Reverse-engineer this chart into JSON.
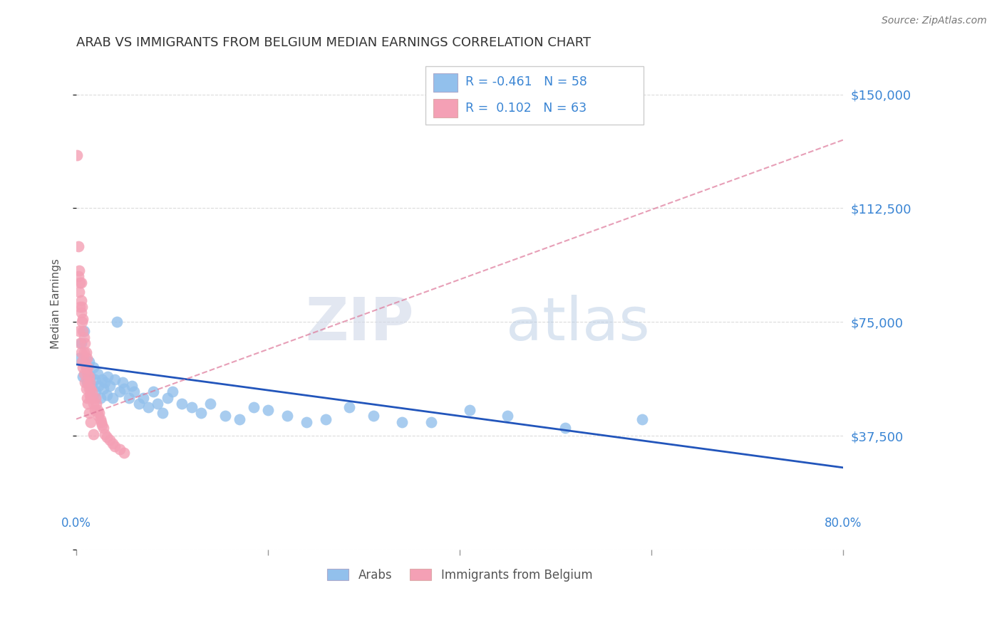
{
  "title": "ARAB VS IMMIGRANTS FROM BELGIUM MEDIAN EARNINGS CORRELATION CHART",
  "source": "Source: ZipAtlas.com",
  "ylabel": "Median Earnings",
  "yticks": [
    0,
    37500,
    75000,
    112500,
    150000
  ],
  "ytick_labels": [
    "",
    "$37,500",
    "$75,000",
    "$112,500",
    "$150,000"
  ],
  "ylim": [
    18000,
    162000
  ],
  "xlim": [
    0.0,
    0.8
  ],
  "legend_bottom": [
    "Arabs",
    "Immigrants from Belgium"
  ],
  "arab_color": "#92c0ec",
  "belgium_color": "#f4a0b5",
  "arab_line_color": "#2255bb",
  "belgium_line_color": "#dd7799",
  "watermark_zip": "ZIP",
  "watermark_atlas": "atlas",
  "background_color": "#ffffff",
  "grid_color": "#cccccc",
  "arab_trend_x0": 0.0,
  "arab_trend_y0": 61000,
  "arab_trend_x1": 0.8,
  "arab_trend_y1": 27000,
  "belg_trend_x0": 0.0,
  "belg_trend_y0": 43000,
  "belg_trend_x1": 0.8,
  "belg_trend_y1": 135000,
  "arab_points_x": [
    0.003,
    0.005,
    0.007,
    0.008,
    0.01,
    0.011,
    0.012,
    0.013,
    0.015,
    0.016,
    0.018,
    0.019,
    0.02,
    0.022,
    0.023,
    0.025,
    0.027,
    0.028,
    0.03,
    0.032,
    0.033,
    0.035,
    0.038,
    0.04,
    0.042,
    0.045,
    0.048,
    0.05,
    0.055,
    0.058,
    0.06,
    0.065,
    0.07,
    0.075,
    0.08,
    0.085,
    0.09,
    0.095,
    0.1,
    0.11,
    0.12,
    0.13,
    0.14,
    0.155,
    0.17,
    0.185,
    0.2,
    0.22,
    0.24,
    0.26,
    0.285,
    0.31,
    0.34,
    0.37,
    0.41,
    0.45,
    0.51,
    0.59
  ],
  "arab_points_y": [
    63000,
    68000,
    57000,
    72000,
    60000,
    55000,
    58000,
    62000,
    57000,
    54000,
    60000,
    56000,
    52000,
    58000,
    54000,
    50000,
    56000,
    53000,
    55000,
    51000,
    57000,
    54000,
    50000,
    56000,
    75000,
    52000,
    55000,
    53000,
    50000,
    54000,
    52000,
    48000,
    50000,
    47000,
    52000,
    48000,
    45000,
    50000,
    52000,
    48000,
    47000,
    45000,
    48000,
    44000,
    43000,
    47000,
    46000,
    44000,
    42000,
    43000,
    47000,
    44000,
    42000,
    42000,
    46000,
    44000,
    40000,
    43000
  ],
  "belgium_points_x": [
    0.001,
    0.002,
    0.002,
    0.003,
    0.003,
    0.004,
    0.004,
    0.005,
    0.005,
    0.005,
    0.006,
    0.006,
    0.007,
    0.007,
    0.008,
    0.008,
    0.009,
    0.009,
    0.01,
    0.01,
    0.011,
    0.011,
    0.012,
    0.012,
    0.013,
    0.013,
    0.014,
    0.014,
    0.015,
    0.015,
    0.016,
    0.017,
    0.018,
    0.019,
    0.02,
    0.021,
    0.022,
    0.023,
    0.024,
    0.025,
    0.026,
    0.027,
    0.028,
    0.03,
    0.032,
    0.035,
    0.038,
    0.04,
    0.045,
    0.05,
    0.003,
    0.004,
    0.005,
    0.006,
    0.007,
    0.008,
    0.009,
    0.01,
    0.011,
    0.012,
    0.013,
    0.015,
    0.018
  ],
  "belgium_points_y": [
    130000,
    90000,
    100000,
    85000,
    92000,
    80000,
    88000,
    78000,
    82000,
    88000,
    75000,
    80000,
    72000,
    76000,
    70000,
    65000,
    68000,
    62000,
    65000,
    60000,
    63000,
    58000,
    60000,
    55000,
    57000,
    53000,
    55000,
    51000,
    53000,
    50000,
    52000,
    50000,
    48000,
    46000,
    50000,
    48000,
    46000,
    44000,
    45000,
    43000,
    42000,
    41000,
    40000,
    38000,
    37000,
    36000,
    35000,
    34000,
    33000,
    32000,
    72000,
    68000,
    65000,
    62000,
    60000,
    58000,
    55000,
    53000,
    50000,
    48000,
    45000,
    42000,
    38000
  ]
}
